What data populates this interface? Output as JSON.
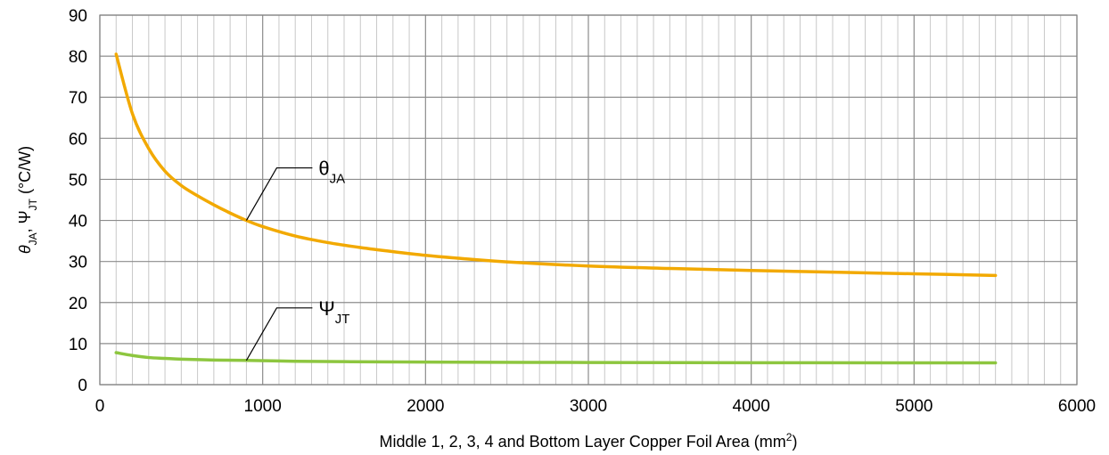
{
  "chart_data": {
    "type": "line",
    "xlabel": {
      "main": "Middle 1, 2, 3, 4 and Bottom Layer Copper Foil Area (mm",
      "sup": "2",
      "tail": ")"
    },
    "ylabel": {
      "theta": "θ",
      "sub1": "JA",
      "mid": ", Ψ",
      "sub2": "JT",
      "units": " (°C/W)"
    },
    "xlim": [
      0,
      6000
    ],
    "ylim": [
      0,
      90
    ],
    "xticks": [
      0,
      1000,
      2000,
      3000,
      4000,
      5000,
      6000
    ],
    "yticks": [
      0,
      10,
      20,
      30,
      40,
      50,
      60,
      70,
      80,
      90
    ],
    "grid": true,
    "series": [
      {
        "name": "θJA",
        "color": "#f2a900",
        "x": [
          100,
          200,
          300,
          400,
          500,
          600,
          700,
          800,
          900,
          1000,
          1200,
          1400,
          1600,
          1800,
          2000,
          2200,
          2500,
          3000,
          3500,
          4000,
          4500,
          5000,
          5500
        ],
        "y": [
          80.5,
          66,
          57.5,
          52,
          48.5,
          46,
          43.8,
          41.8,
          40.0,
          38.5,
          36.2,
          34.6,
          33.4,
          32.4,
          31.5,
          30.8,
          29.9,
          28.9,
          28.3,
          27.8,
          27.4,
          27.0,
          26.6
        ]
      },
      {
        "name": "ΨJT",
        "color": "#8dc63f",
        "x": [
          100,
          200,
          300,
          400,
          500,
          700,
          900,
          1200,
          1500,
          2000,
          3000,
          4000,
          5000,
          5500
        ],
        "y": [
          7.8,
          7.1,
          6.6,
          6.4,
          6.2,
          6.0,
          5.9,
          5.7,
          5.6,
          5.5,
          5.4,
          5.35,
          5.3,
          5.3
        ]
      }
    ],
    "annotations": [
      {
        "series": "θJA",
        "label": "θ",
        "sub": "JA",
        "x": 900,
        "y": 40.0
      },
      {
        "series": "ΨJT",
        "label": "Ψ",
        "sub": "JT",
        "x": 900,
        "y": 5.9
      }
    ]
  }
}
